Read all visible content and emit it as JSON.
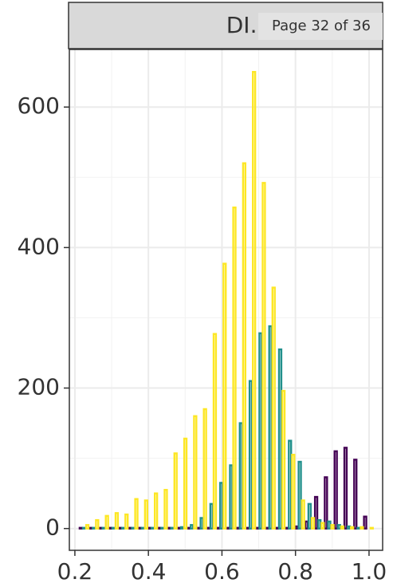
{
  "page_indicator": "Page 32 of 36",
  "chart_data": {
    "type": "histogram",
    "facet": "DI.d",
    "bins": [
      0.2117,
      0.2383,
      0.265,
      0.2917,
      0.3183,
      0.345,
      0.3717,
      0.3983,
      0.425,
      0.4517,
      0.4783,
      0.505,
      0.5317,
      0.5583,
      0.585,
      0.6117,
      0.6383,
      0.665,
      0.6917,
      0.7183,
      0.745,
      0.7717,
      0.7983,
      0.825,
      0.8517,
      0.8783,
      0.905,
      0.9317,
      0.9583,
      0.985,
      1.0117
    ],
    "series": [
      {
        "color": "#440154",
        "values": [
          1,
          1,
          1,
          1,
          1,
          1,
          1,
          1,
          1,
          1,
          1,
          1,
          1,
          1,
          1,
          1,
          1,
          1,
          1,
          1,
          1,
          1,
          3,
          10,
          45,
          73,
          110,
          115,
          98,
          17
        ]
      },
      {
        "color": "#21908c",
        "values": [
          1,
          1,
          1,
          1,
          1,
          1,
          1,
          1,
          1,
          1,
          2,
          5,
          15,
          35,
          65,
          90,
          150,
          210,
          278,
          288,
          255,
          125,
          95,
          35,
          12,
          10,
          5,
          3,
          1,
          0
        ]
      },
      {
        "color": "#fde725",
        "values": [
          5,
          12,
          18,
          22,
          20,
          42,
          40,
          50,
          55,
          107,
          128,
          160,
          170,
          277,
          377,
          457,
          520,
          650,
          492,
          343,
          196,
          105,
          40,
          15,
          8,
          5,
          3,
          2,
          2,
          1
        ]
      }
    ],
    "xlim": [
      0.185,
      1.037
    ],
    "ylim": [
      -31,
      682
    ],
    "xticks": [
      {
        "value": 0.2,
        "label": "0.2"
      },
      {
        "value": 0.4,
        "label": "0.4"
      },
      {
        "value": 0.6,
        "label": "0.6"
      },
      {
        "value": 0.8,
        "label": "0.8"
      },
      {
        "value": 1,
        "label": "1.0"
      }
    ],
    "yticks": [
      0,
      200,
      400,
      600
    ],
    "xminorticks": [
      0.3,
      0.5,
      0.7,
      0.9
    ],
    "yminorticks": [
      100,
      300,
      500
    ],
    "grid": true
  }
}
